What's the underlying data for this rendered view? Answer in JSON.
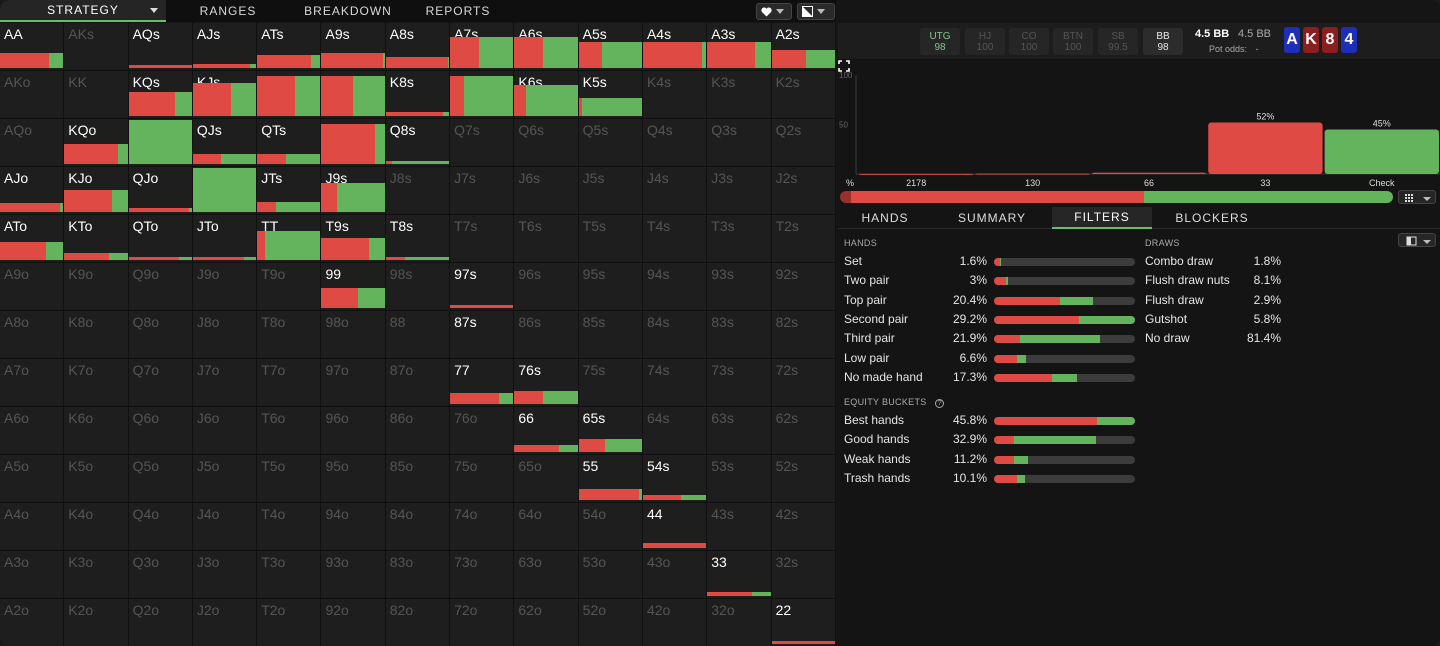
{
  "nav": {
    "tabs": [
      "STRATEGY",
      "RANGES",
      "BREAKDOWN",
      "REPORTS"
    ],
    "active": "STRATEGY"
  },
  "colors": {
    "bet": "#e04a44",
    "check": "#64b45d",
    "accent": "#6bbd6e",
    "card_red": "#8b1e1e",
    "card_blue": "#1d2fb8"
  },
  "grid": {
    "rows": [
      [
        "AA",
        "AKs",
        "AQs",
        "AJs",
        "ATs",
        "A9s",
        "A8s",
        "A7s",
        "A6s",
        "A5s",
        "A4s",
        "A3s",
        "A2s"
      ],
      [
        "AKo",
        "KK",
        "KQs",
        "KJs",
        "KTs",
        "K9s",
        "K8s",
        "K7s",
        "K6s",
        "K5s",
        "K4s",
        "K3s",
        "K2s"
      ],
      [
        "AQo",
        "KQo",
        "QQ",
        "QJs",
        "QTs",
        "Q9s",
        "Q8s",
        "Q7s",
        "Q6s",
        "Q5s",
        "Q4s",
        "Q3s",
        "Q2s"
      ],
      [
        "AJo",
        "KJo",
        "QJo",
        "JJ",
        "JTs",
        "J9s",
        "J8s",
        "J7s",
        "J6s",
        "J5s",
        "J4s",
        "J3s",
        "J2s"
      ],
      [
        "ATo",
        "KTo",
        "QTo",
        "JTo",
        "TT",
        "T9s",
        "T8s",
        "T7s",
        "T6s",
        "T5s",
        "T4s",
        "T3s",
        "T2s"
      ],
      [
        "A9o",
        "K9o",
        "Q9o",
        "J9o",
        "T9o",
        "99",
        "98s",
        "97s",
        "96s",
        "95s",
        "94s",
        "93s",
        "92s"
      ],
      [
        "A8o",
        "K8o",
        "Q8o",
        "J8o",
        "T8o",
        "98o",
        "88",
        "87s",
        "86s",
        "85s",
        "84s",
        "83s",
        "82s"
      ],
      [
        "A7o",
        "K7o",
        "Q7o",
        "J7o",
        "T7o",
        "97o",
        "87o",
        "77",
        "76s",
        "75s",
        "74s",
        "73s",
        "72s"
      ],
      [
        "A6o",
        "K6o",
        "Q6o",
        "J6o",
        "T6o",
        "96o",
        "86o",
        "76o",
        "66",
        "65s",
        "64s",
        "63s",
        "62s"
      ],
      [
        "A5o",
        "K5o",
        "Q5o",
        "J5o",
        "T5o",
        "95o",
        "85o",
        "75o",
        "65o",
        "55",
        "54s",
        "53s",
        "52s"
      ],
      [
        "A4o",
        "K4o",
        "Q4o",
        "J4o",
        "T4o",
        "94o",
        "84o",
        "74o",
        "64o",
        "54o",
        "44",
        "43s",
        "42s"
      ],
      [
        "A3o",
        "K3o",
        "Q3o",
        "J3o",
        "T3o",
        "93o",
        "83o",
        "73o",
        "63o",
        "53o",
        "43o",
        "33",
        "32s"
      ],
      [
        "A2o",
        "K2o",
        "Q2o",
        "J2o",
        "T2o",
        "92o",
        "82o",
        "72o",
        "62o",
        "52o",
        "42o",
        "32o",
        "22"
      ]
    ],
    "hands": {
      "AA": {
        "freq": 0.33,
        "bet": 0.78
      },
      "AQs": {
        "freq": 0.05,
        "bet": 1.0
      },
      "AJs": {
        "freq": 0.08,
        "bet": 0.9
      },
      "ATs": {
        "freq": 0.3,
        "bet": 0.85
      },
      "A9s": {
        "freq": 0.35,
        "bet": 0.97
      },
      "A8s": {
        "freq": 0.25,
        "bet": 0.98
      },
      "A7s": {
        "freq": 0.7,
        "bet": 0.45
      },
      "A6s": {
        "freq": 0.7,
        "bet": 0.45
      },
      "A5s": {
        "freq": 0.6,
        "bet": 0.37
      },
      "A4s": {
        "freq": 0.6,
        "bet": 0.93
      },
      "A3s": {
        "freq": 0.6,
        "bet": 0.75
      },
      "A2s": {
        "freq": 0.42,
        "bet": 0.55
      },
      "KQs": {
        "freq": 0.55,
        "bet": 0.74
      },
      "KJs": {
        "freq": 0.75,
        "bet": 0.6
      },
      "KTs": {
        "freq": 0.92,
        "bet": 0.6
      },
      "K9s": {
        "freq": 0.92,
        "bet": 0.5
      },
      "K8s": {
        "freq": 0.08,
        "bet": 0.9
      },
      "K7s": {
        "freq": 0.92,
        "bet": 0.22
      },
      "K6s": {
        "freq": 0.7,
        "bet": 0.18
      },
      "K5s": {
        "freq": 0.4,
        "bet": 0.05
      },
      "QQ": {
        "freq": 1.0,
        "bet": 0.0
      },
      "QJs": {
        "freq": 0.22,
        "bet": 0.45
      },
      "QTs": {
        "freq": 0.22,
        "bet": 0.45
      },
      "Q9s": {
        "freq": 0.92,
        "bet": 0.85
      },
      "Q8s": {
        "freq": 0.06,
        "bet": 0.1
      },
      "KQo": {
        "freq": 0.46,
        "bet": 0.85
      },
      "AJo": {
        "freq": 0.2,
        "bet": 0.95
      },
      "KJo": {
        "freq": 0.5,
        "bet": 0.75
      },
      "QJo": {
        "freq": 0.1,
        "bet": 0.95
      },
      "JJ": {
        "freq": 1.0,
        "bet": 0.0
      },
      "JTs": {
        "freq": 0.22,
        "bet": 0.3
      },
      "J9s": {
        "freq": 0.65,
        "bet": 0.25
      },
      "ATo": {
        "freq": 0.42,
        "bet": 0.72
      },
      "KTo": {
        "freq": 0.15,
        "bet": 0.7
      },
      "QTo": {
        "freq": 0.05,
        "bet": 0.8
      },
      "JTo": {
        "freq": 0.05,
        "bet": 0.8
      },
      "TT": {
        "freq": 0.65,
        "bet": 0.12
      },
      "T9s": {
        "freq": 0.5,
        "bet": 0.75
      },
      "T8s": {
        "freq": 0.04,
        "bet": 0.3
      },
      "99": {
        "freq": 0.45,
        "bet": 0.57
      },
      "97s": {
        "freq": 0.06,
        "bet": 1.0
      },
      "87s": {
        "freq": 0.0,
        "bet": 0.0
      },
      "77": {
        "freq": 0.26,
        "bet": 0.78
      },
      "76s": {
        "freq": 0.3,
        "bet": 0.45
      },
      "66": {
        "freq": 0.16,
        "bet": 0.7
      },
      "65s": {
        "freq": 0.3,
        "bet": 0.42
      },
      "55": {
        "freq": 0.25,
        "bet": 0.95
      },
      "54s": {
        "freq": 0.12,
        "bet": 0.6
      },
      "44": {
        "freq": 0.12,
        "bet": 1.0
      },
      "33": {
        "freq": 0.08,
        "bet": 0.7
      },
      "22": {
        "freq": 0.06,
        "bet": 1.0
      }
    }
  },
  "seats": [
    {
      "pos": "UTG",
      "stack": "98"
    },
    {
      "pos": "HJ",
      "stack": "100"
    },
    {
      "pos": "CO",
      "stack": "100"
    },
    {
      "pos": "BTN",
      "stack": "100"
    },
    {
      "pos": "SB",
      "stack": "99.5"
    },
    {
      "pos": "BB",
      "stack": "98"
    }
  ],
  "pot": {
    "main": "4.5 BB",
    "secondary": "4.5 BB",
    "odds_label": "Pot odds:",
    "odds_value": "-"
  },
  "board": [
    {
      "rank": "A",
      "suit_color": "blue"
    },
    {
      "rank": "K",
      "suit_color": "red"
    },
    {
      "rank": "8",
      "suit_color": "red"
    },
    {
      "rank": "4",
      "suit_color": "blue"
    }
  ],
  "chart_data": {
    "type": "bar",
    "categories": [
      "2178",
      "130",
      "66",
      "33",
      "Check"
    ],
    "values": [
      0.1,
      0.4,
      1.4,
      52,
      45
    ],
    "labels": [
      "",
      "",
      "",
      "52%",
      "45%"
    ],
    "colors": [
      "#e04a44",
      "#e04a44",
      "#e04a44",
      "#e04a44",
      "#64b45d"
    ],
    "ylim": [
      0,
      100
    ],
    "yticks": [
      "0",
      "50",
      "100"
    ],
    "xlabel_prefix": "%"
  },
  "strategy_bar": {
    "bet_dark": 0.02,
    "bet": 0.53,
    "check": 0.45
  },
  "tabs": [
    "HANDS",
    "SUMMARY",
    "FILTERS",
    "BLOCKERS"
  ],
  "active_tab": "FILTERS",
  "filters": {
    "hands_title": "HANDS",
    "draws_title": "DRAWS",
    "equity_title": "EQUITY BUCKETS",
    "hands": [
      {
        "name": "Set",
        "pct": "1.6%",
        "fill": 0.05,
        "bet": 0.9
      },
      {
        "name": "Two pair",
        "pct": "3%",
        "fill": 0.1,
        "bet": 0.85
      },
      {
        "name": "Top pair",
        "pct": "20.4%",
        "fill": 0.7,
        "bet": 0.67
      },
      {
        "name": "Second pair",
        "pct": "29.2%",
        "fill": 1.0,
        "bet": 0.6
      },
      {
        "name": "Third pair",
        "pct": "21.9%",
        "fill": 0.75,
        "bet": 0.25
      },
      {
        "name": "Low pair",
        "pct": "6.6%",
        "fill": 0.23,
        "bet": 0.7
      },
      {
        "name": "No made hand",
        "pct": "17.3%",
        "fill": 0.59,
        "bet": 0.7
      }
    ],
    "draws": [
      {
        "name": "Combo draw",
        "pct": "1.8%",
        "fill": 0.02,
        "bet": 0.9
      },
      {
        "name": "Flush draw nuts",
        "pct": "8.1%",
        "fill": 0.09,
        "bet": 0.85
      },
      {
        "name": "Flush draw",
        "pct": "2.9%",
        "fill": 0.03,
        "bet": 0.6
      },
      {
        "name": "Gutshot",
        "pct": "5.8%",
        "fill": 0.07,
        "bet": 0.7
      },
      {
        "name": "No draw",
        "pct": "81.4%",
        "fill": 1.0,
        "bet": 0.53
      }
    ],
    "equity": [
      {
        "name": "Best hands",
        "pct": "45.8%",
        "fill": 1.0,
        "bet": 0.73
      },
      {
        "name": "Good hands",
        "pct": "32.9%",
        "fill": 0.72,
        "bet": 0.2
      },
      {
        "name": "Weak hands",
        "pct": "11.2%",
        "fill": 0.24,
        "bet": 0.6
      },
      {
        "name": "Trash hands",
        "pct": "10.1%",
        "fill": 0.22,
        "bet": 0.75
      }
    ]
  }
}
